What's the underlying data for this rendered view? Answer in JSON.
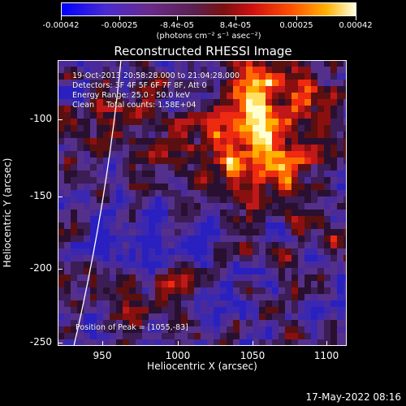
{
  "colorbar": {
    "tick_labels": [
      "-0.00042",
      "-0.00025",
      "-8.4e-05",
      "8.4e-05",
      "0.00025",
      "0.00042"
    ],
    "units": "(photons cm⁻² s⁻¹ asec⁻²)"
  },
  "title": "Reconstructed RHESSI Image",
  "info": {
    "time_range": "19-Oct-2013 20:58:28.000 to 21:04:28.000",
    "detectors": "Detectors: 3F 4F 5F 6F 7F 8F, Att 0",
    "energy": "Energy Range: 25.0 - 50.0 keV",
    "clean": "Clean     Total counts: 1.58E+04",
    "peak": "Position of Peak = [1055,-83]"
  },
  "axes": {
    "xlabel": "Heliocentric X (arcsec)",
    "ylabel": "Heliocentric Y (arcsec)",
    "xticks": [
      "950",
      "1000",
      "1050",
      "1100"
    ],
    "yticks": [
      "-100",
      "-150",
      "-200",
      "-250"
    ]
  },
  "footer": {
    "timestamp": "17-May-2022 08:16"
  },
  "colors": {
    "background": "#000000",
    "limb_line": "#ffffff"
  }
}
